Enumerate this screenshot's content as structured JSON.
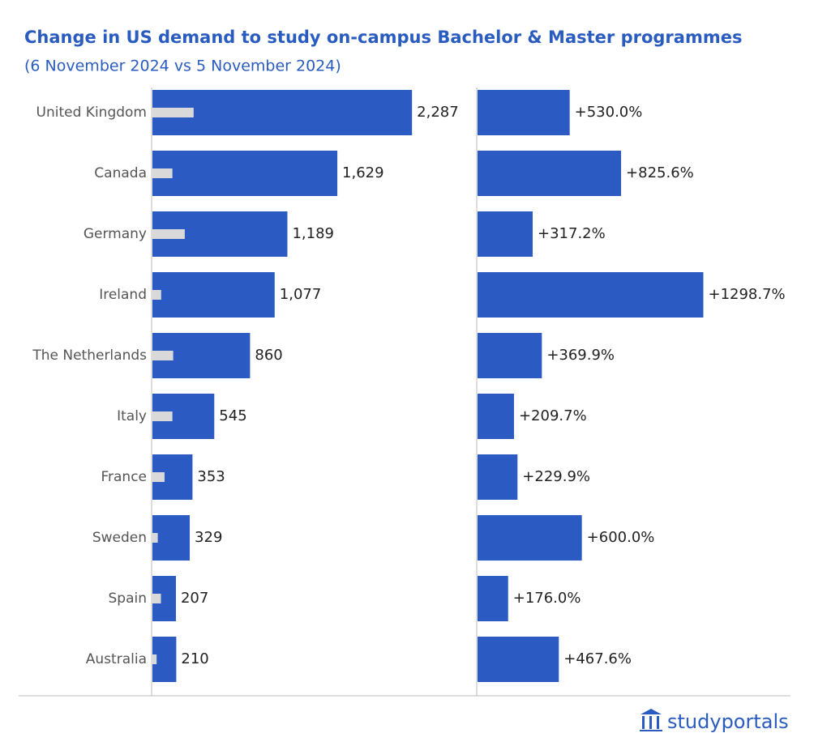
{
  "title": "Change in US demand to study on-campus Bachelor & Master programmes",
  "subtitle": "(6 November 2024 vs 5 November 2024)",
  "brand": "studyportals",
  "chart_data": [
    {
      "type": "bar",
      "orientation": "horizontal",
      "categories": [
        "United Kingdom",
        "Canada",
        "Germany",
        "Ireland",
        "The Netherlands",
        "Italy",
        "France",
        "Sweden",
        "Spain",
        "Australia"
      ],
      "values": [
        2287,
        1629,
        1189,
        1077,
        860,
        545,
        353,
        329,
        207,
        210
      ],
      "value_labels": [
        "2,287",
        "1,629",
        "1,189",
        "1,077",
        "860",
        "545",
        "353",
        "329",
        "207",
        "210"
      ],
      "baseline_values": [
        363,
        176,
        285,
        77,
        183,
        176,
        107,
        47,
        75,
        37
      ],
      "color": "#2b5bc2",
      "baseline_color": "#d9d9d9",
      "xlim": [
        0,
        2800
      ]
    },
    {
      "type": "bar",
      "orientation": "horizontal",
      "values": [
        530.0,
        825.6,
        317.2,
        1298.7,
        369.9,
        209.7,
        229.9,
        600.0,
        176.0,
        467.6
      ],
      "value_labels": [
        "+530.0%",
        "+825.6%",
        "+317.2%",
        "+1298.7%",
        "+369.9%",
        "+209.7%",
        "+229.9%",
        "+600.0%",
        "+176.0%",
        "+467.6%"
      ],
      "color": "#2b5bc2",
      "xlim": [
        0,
        1800
      ]
    }
  ]
}
